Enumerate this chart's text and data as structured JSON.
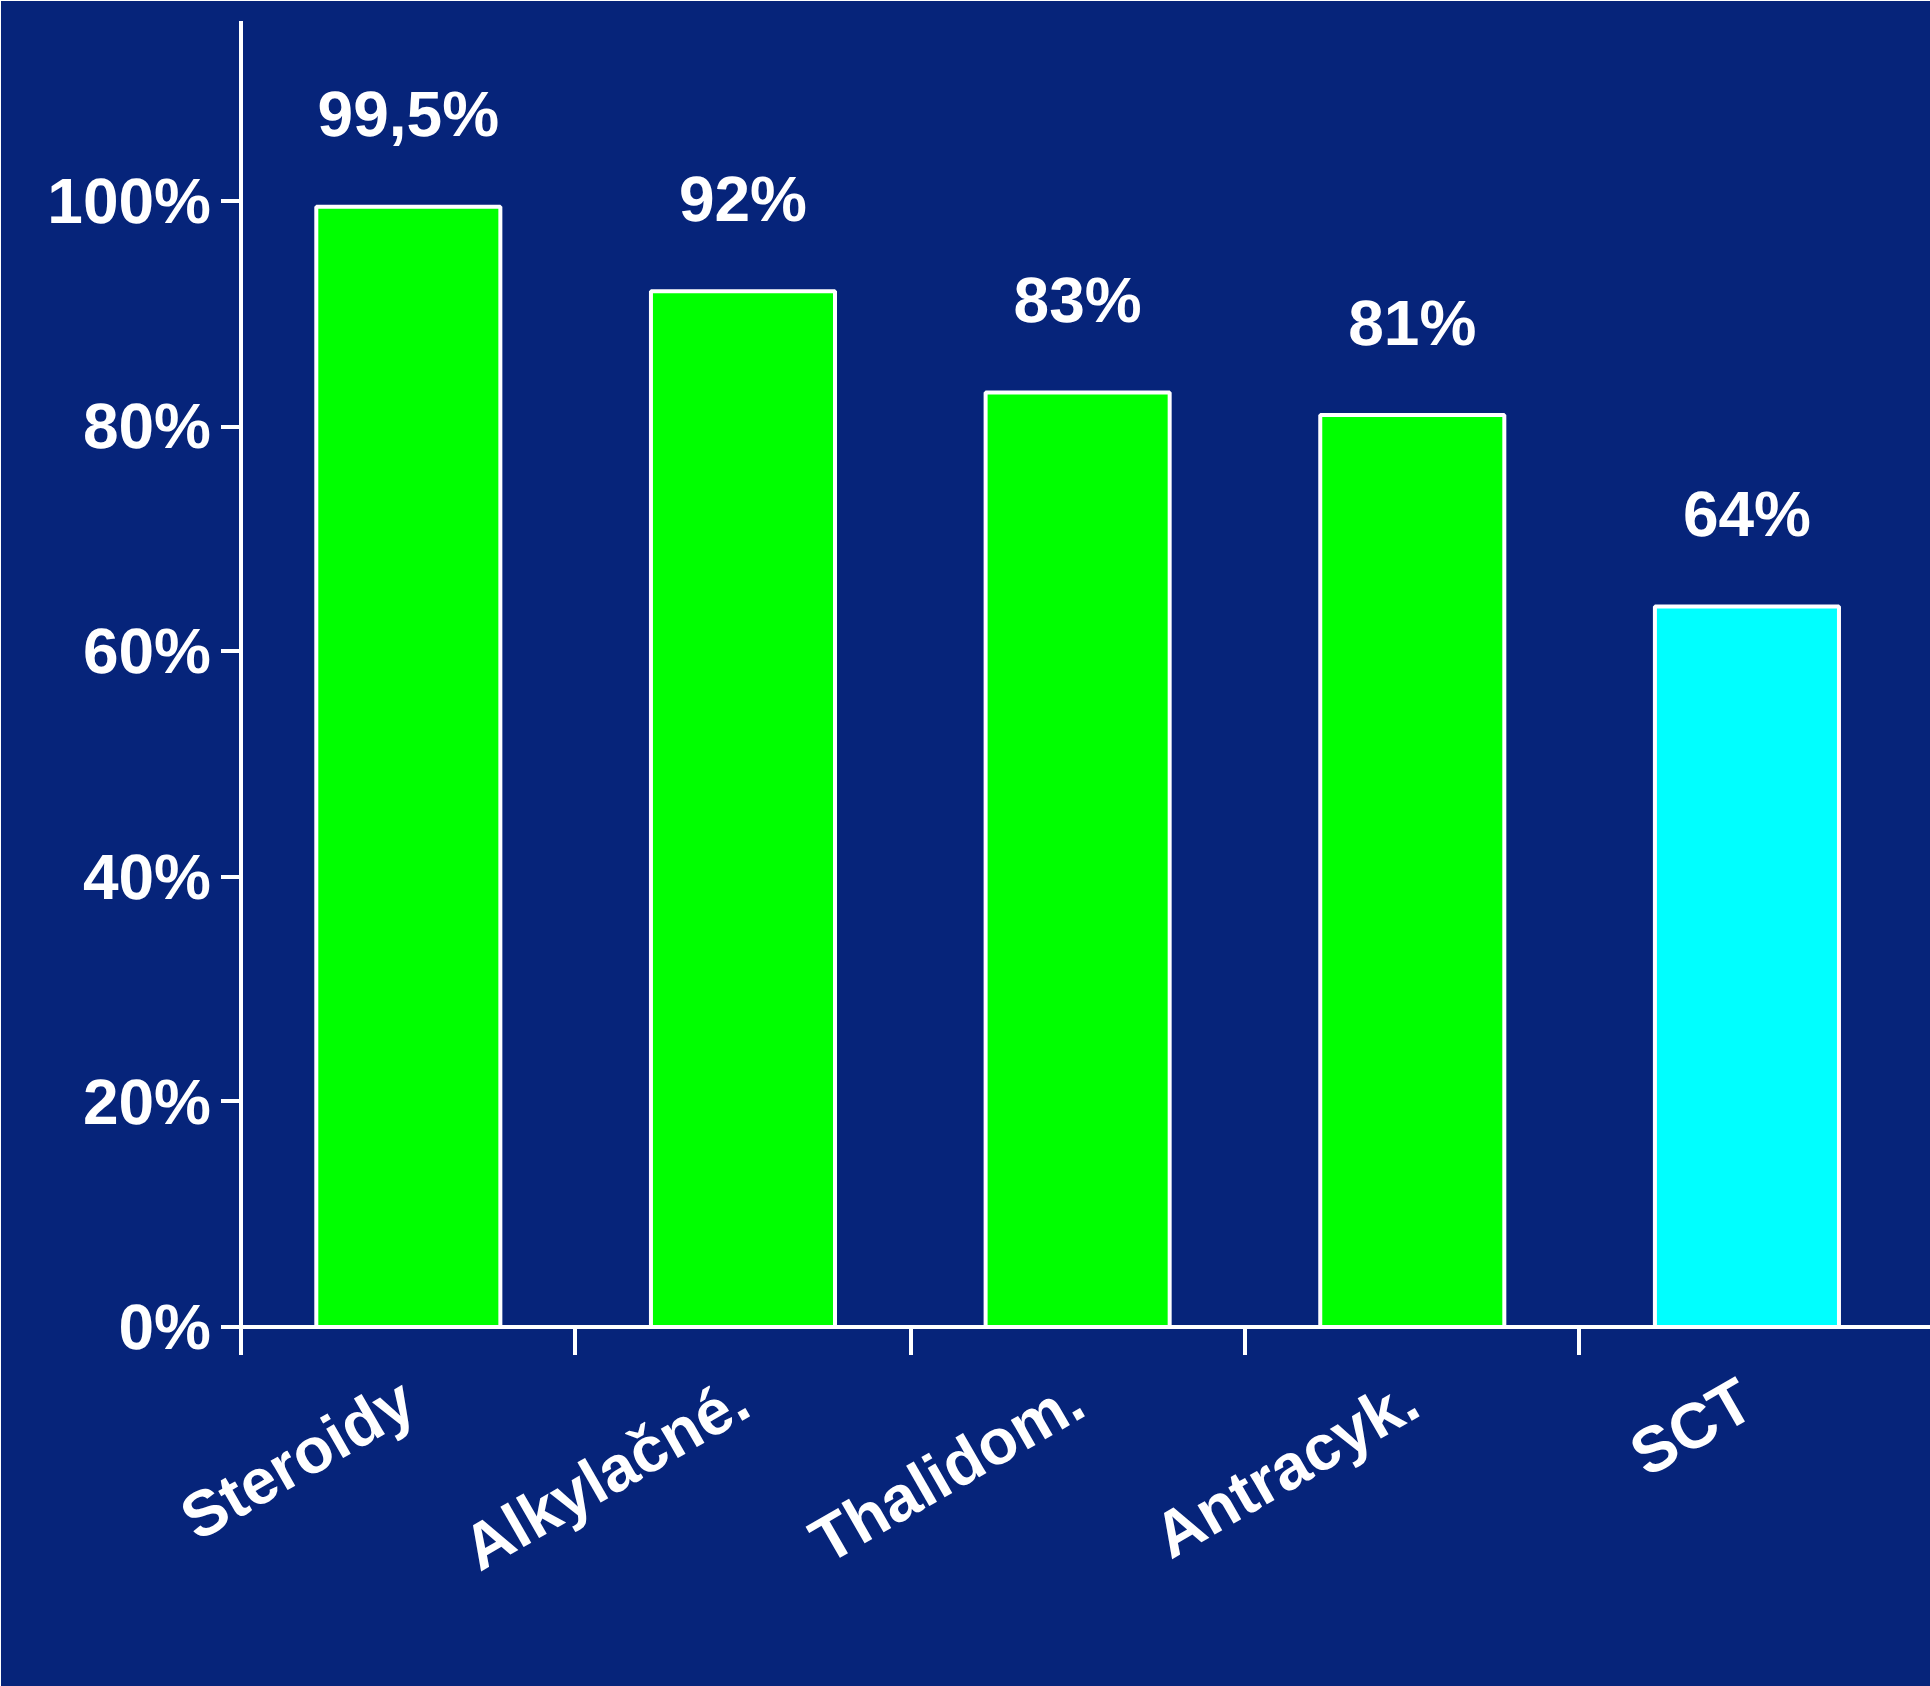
{
  "chart_data": {
    "type": "bar",
    "categories": [
      "Steroidy",
      "Alkylačné.",
      "Thalidom.",
      "Antracyk.",
      "SCT"
    ],
    "values": [
      99.5,
      92,
      83,
      81,
      64
    ],
    "colors": [
      "#00ff00",
      "#00ff00",
      "#00ff00",
      "#00ff00",
      "#00ffff"
    ],
    "value_labels": [
      "99,5%",
      "92%",
      "83%",
      "81%",
      "64%"
    ],
    "ylim": [
      0,
      100
    ],
    "yticks": [
      {
        "value": 0,
        "label": "0%"
      },
      {
        "value": 20,
        "label": "20%"
      },
      {
        "value": 40,
        "label": "40%"
      },
      {
        "value": 60,
        "label": "60%"
      },
      {
        "value": 80,
        "label": "80%"
      },
      {
        "value": 100,
        "label": "100%"
      }
    ],
    "grid": false
  }
}
